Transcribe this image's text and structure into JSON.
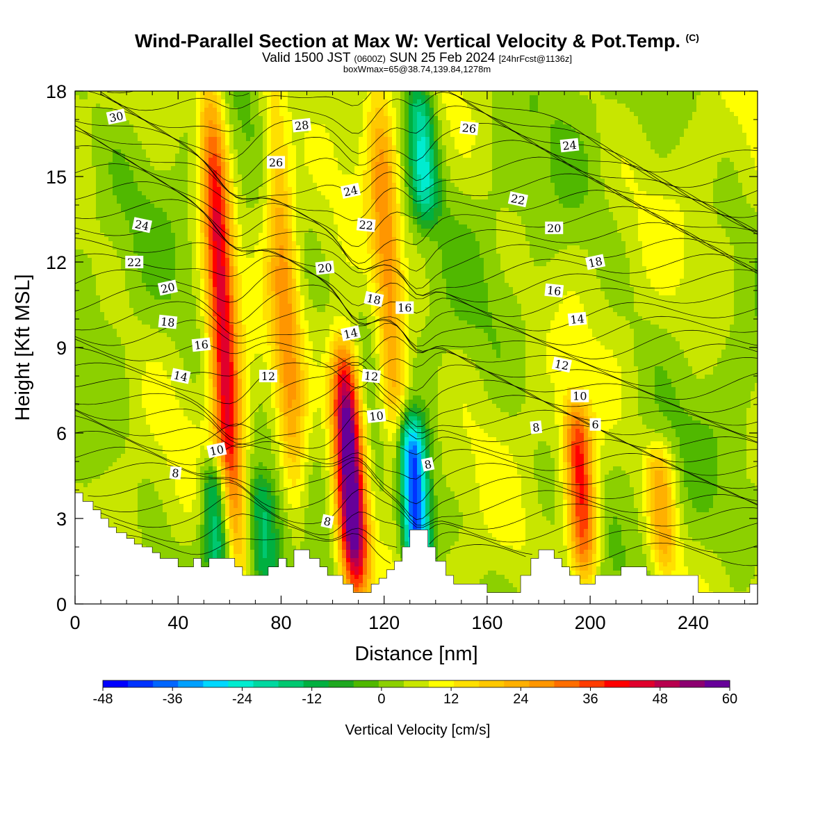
{
  "header": {
    "title": "Wind-Parallel Section at Max W: Vertical Velocity & Pot.Temp.",
    "copyright": "(C)",
    "valid_prefix": "Valid 1500 JST",
    "valid_utc": "(0600Z)",
    "valid_date": "SUN 25 Feb 2024",
    "forecast": "[24hrFcst@1136z]",
    "box_info": "boxWmax=65@38.74,139.84,1278m"
  },
  "chart_data": {
    "type": "heatmap",
    "title": "Wind-Parallel Section at Max W: Vertical Velocity & Pot.Temp.",
    "xlabel": "Distance [nm]",
    "ylabel": "Height [Kft MSL]",
    "xlim": [
      0,
      265
    ],
    "ylim": [
      0,
      18
    ],
    "x_ticks": [
      0,
      40,
      80,
      120,
      160,
      200,
      240
    ],
    "y_ticks": [
      0,
      3,
      6,
      9,
      12,
      15,
      18
    ],
    "colorbar": {
      "label": "Vertical Velocity [cm/s]",
      "min": -48,
      "max": 60,
      "ticks": [
        -48,
        -36,
        -24,
        -12,
        0,
        12,
        24,
        36,
        48,
        60
      ],
      "colors": [
        "#0000ff",
        "#0033ff",
        "#0066ff",
        "#00a0ff",
        "#00d8ff",
        "#00ecd0",
        "#00d8a0",
        "#00c870",
        "#00b040",
        "#1ea820",
        "#50b800",
        "#8cd000",
        "#c8e600",
        "#ffff00",
        "#ffe000",
        "#ffc800",
        "#ffb000",
        "#ff9600",
        "#ff6e00",
        "#ff3c00",
        "#ff0000",
        "#e0002c",
        "#b8004e",
        "#8c0070",
        "#660099"
      ]
    },
    "updraft_cores": [
      {
        "x": 62,
        "base": 2.0,
        "top": 18.0,
        "peak": 40
      },
      {
        "x": 109,
        "base": 0.8,
        "top": 8.5,
        "peak": 60
      },
      {
        "x": 198,
        "base": 1.2,
        "top": 6.5,
        "peak": 36
      },
      {
        "x": 86,
        "base": 3.0,
        "top": 18.0,
        "peak": 20
      },
      {
        "x": 126,
        "base": 4.0,
        "top": 18.0,
        "peak": 22
      },
      {
        "x": 229,
        "base": 1.5,
        "top": 5.0,
        "peak": 20
      }
    ],
    "downdraft_cores": [
      {
        "x": 133,
        "base": 1.5,
        "top": 6.0,
        "peak": -48
      },
      {
        "x": 56,
        "base": 1.5,
        "top": 4.5,
        "peak": -26
      },
      {
        "x": 74,
        "base": 1.0,
        "top": 4.0,
        "peak": -16
      },
      {
        "x": 136,
        "base": 14.0,
        "top": 18.0,
        "peak": -26
      }
    ],
    "theta_contour_labels": [
      {
        "value": "30",
        "x": 16,
        "y": 17.1
      },
      {
        "value": "28",
        "x": 88,
        "y": 16.8
      },
      {
        "value": "26",
        "x": 78,
        "y": 15.5
      },
      {
        "value": "26",
        "x": 153,
        "y": 16.7
      },
      {
        "value": "24",
        "x": 26,
        "y": 13.3
      },
      {
        "value": "24",
        "x": 107,
        "y": 14.5
      },
      {
        "value": "24",
        "x": 192,
        "y": 16.1
      },
      {
        "value": "22",
        "x": 23,
        "y": 12.0
      },
      {
        "value": "22",
        "x": 113,
        "y": 13.3
      },
      {
        "value": "22",
        "x": 172,
        "y": 14.2
      },
      {
        "value": "20",
        "x": 36,
        "y": 11.1
      },
      {
        "value": "20",
        "x": 97,
        "y": 11.8
      },
      {
        "value": "20",
        "x": 186,
        "y": 13.2
      },
      {
        "value": "18",
        "x": 36,
        "y": 9.9
      },
      {
        "value": "18",
        "x": 116,
        "y": 10.7
      },
      {
        "value": "18",
        "x": 202,
        "y": 12.0
      },
      {
        "value": "16",
        "x": 49,
        "y": 9.1
      },
      {
        "value": "16",
        "x": 128,
        "y": 10.4
      },
      {
        "value": "16",
        "x": 186,
        "y": 11.0
      },
      {
        "value": "14",
        "x": 41,
        "y": 8.0
      },
      {
        "value": "14",
        "x": 107,
        "y": 9.5
      },
      {
        "value": "14",
        "x": 195,
        "y": 10.0
      },
      {
        "value": "12",
        "x": 75,
        "y": 8.0
      },
      {
        "value": "12",
        "x": 115,
        "y": 8.0
      },
      {
        "value": "12",
        "x": 189,
        "y": 8.4
      },
      {
        "value": "10",
        "x": 55,
        "y": 5.4
      },
      {
        "value": "10",
        "x": 117,
        "y": 6.6
      },
      {
        "value": "10",
        "x": 196,
        "y": 7.3
      },
      {
        "value": "8",
        "x": 39,
        "y": 4.6
      },
      {
        "value": "8",
        "x": 98,
        "y": 2.9
      },
      {
        "value": "8",
        "x": 137,
        "y": 4.9
      },
      {
        "value": "8",
        "x": 179,
        "y": 6.2
      },
      {
        "value": "6",
        "x": 202,
        "y": 6.3
      }
    ],
    "terrain": [
      [
        0,
        3.9
      ],
      [
        3,
        3.9
      ],
      [
        3,
        3.6
      ],
      [
        7,
        3.6
      ],
      [
        7,
        3.3
      ],
      [
        10,
        3.3
      ],
      [
        10,
        3.0
      ],
      [
        13,
        3.0
      ],
      [
        13,
        2.7
      ],
      [
        16,
        2.7
      ],
      [
        16,
        2.5
      ],
      [
        20,
        2.5
      ],
      [
        20,
        2.3
      ],
      [
        23,
        2.3
      ],
      [
        23,
        2.1
      ],
      [
        26,
        2.1
      ],
      [
        26,
        2.0
      ],
      [
        30,
        2.0
      ],
      [
        30,
        1.8
      ],
      [
        33,
        1.8
      ],
      [
        33,
        1.6
      ],
      [
        40,
        1.6
      ],
      [
        40,
        1.3
      ],
      [
        46,
        1.3
      ],
      [
        46,
        1.6
      ],
      [
        49,
        1.6
      ],
      [
        49,
        1.3
      ],
      [
        52,
        1.3
      ],
      [
        52,
        1.6
      ],
      [
        62,
        1.6
      ],
      [
        62,
        1.3
      ],
      [
        65,
        1.3
      ],
      [
        65,
        1.0
      ],
      [
        75,
        1.0
      ],
      [
        75,
        1.3
      ],
      [
        79,
        1.3
      ],
      [
        79,
        1.6
      ],
      [
        82,
        1.6
      ],
      [
        82,
        1.3
      ],
      [
        85,
        1.3
      ],
      [
        85,
        1.9
      ],
      [
        91,
        1.9
      ],
      [
        91,
        1.6
      ],
      [
        95,
        1.6
      ],
      [
        95,
        1.3
      ],
      [
        98,
        1.3
      ],
      [
        98,
        1.0
      ],
      [
        104,
        1.0
      ],
      [
        104,
        0.7
      ],
      [
        108,
        0.7
      ],
      [
        108,
        0.4
      ],
      [
        115,
        0.4
      ],
      [
        115,
        0.7
      ],
      [
        118,
        0.7
      ],
      [
        118,
        0.9
      ],
      [
        121,
        0.9
      ],
      [
        121,
        1.2
      ],
      [
        124,
        1.2
      ],
      [
        124,
        1.5
      ],
      [
        127,
        1.5
      ],
      [
        127,
        2.0
      ],
      [
        130,
        2.0
      ],
      [
        130,
        2.6
      ],
      [
        137,
        2.6
      ],
      [
        137,
        2.0
      ],
      [
        140,
        2.0
      ],
      [
        140,
        1.5
      ],
      [
        144,
        1.5
      ],
      [
        144,
        1.0
      ],
      [
        147,
        1.0
      ],
      [
        147,
        0.7
      ],
      [
        160,
        0.7
      ],
      [
        160,
        0.4
      ],
      [
        173,
        0.4
      ],
      [
        173,
        1.0
      ],
      [
        177,
        1.0
      ],
      [
        177,
        1.6
      ],
      [
        180,
        1.6
      ],
      [
        180,
        1.9
      ],
      [
        186,
        1.9
      ],
      [
        186,
        1.6
      ],
      [
        189,
        1.6
      ],
      [
        189,
        1.3
      ],
      [
        192,
        1.3
      ],
      [
        192,
        1.0
      ],
      [
        196,
        1.0
      ],
      [
        196,
        0.7
      ],
      [
        202,
        0.7
      ],
      [
        202,
        1.0
      ],
      [
        212,
        1.0
      ],
      [
        212,
        1.3
      ],
      [
        222,
        1.3
      ],
      [
        222,
        1.0
      ],
      [
        242,
        1.0
      ],
      [
        242,
        0.4
      ],
      [
        262,
        0.4
      ],
      [
        262,
        0.7
      ],
      [
        265,
        0.7
      ]
    ]
  }
}
